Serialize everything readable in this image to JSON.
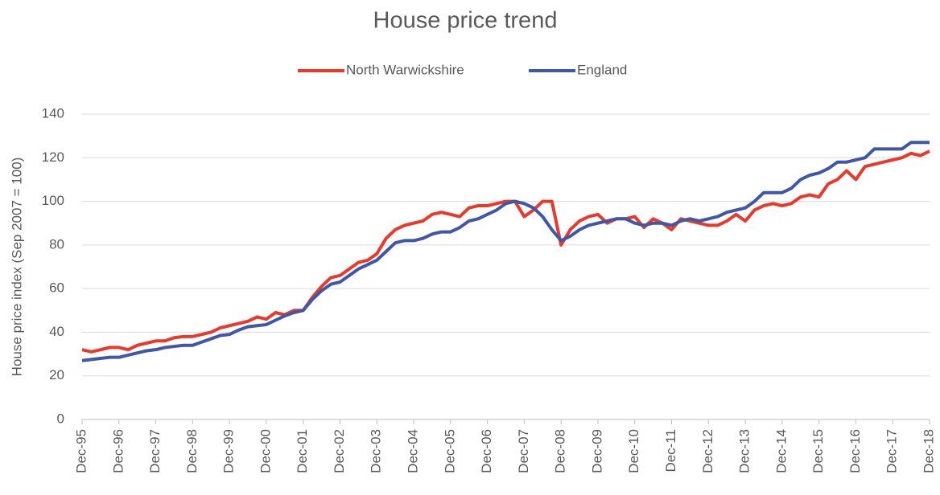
{
  "chart_data": {
    "type": "line",
    "title": "House price trend",
    "y_label": "House price index (Sep 2007 = 100)",
    "categories": [
      "Dec-95",
      null,
      null,
      null,
      "Dec-96",
      null,
      null,
      null,
      "Dec-97",
      null,
      null,
      null,
      "Dec-98",
      null,
      null,
      null,
      "Dec-99",
      null,
      null,
      null,
      "Dec-00",
      null,
      null,
      null,
      "Dec-01",
      null,
      null,
      null,
      "Dec-02",
      null,
      null,
      null,
      "Dec-03",
      null,
      null,
      null,
      "Dec-04",
      null,
      null,
      null,
      "Dec-05",
      null,
      null,
      null,
      "Dec-06",
      null,
      null,
      null,
      "Dec-07",
      null,
      null,
      null,
      "Dec-08",
      null,
      null,
      null,
      "Dec-09",
      null,
      null,
      null,
      "Dec-10",
      null,
      null,
      null,
      "Dec-11",
      null,
      null,
      null,
      "Dec-12",
      null,
      null,
      null,
      "Dec-13",
      null,
      null,
      null,
      "Dec-14",
      null,
      null,
      null,
      "Dec-15",
      null,
      null,
      null,
      "Dec-16",
      null,
      null,
      null,
      "Dec-17",
      null,
      null,
      null,
      "Dec-18"
    ],
    "series": [
      {
        "name": "North Warwickshire",
        "color": "#e8392b",
        "values": [
          32,
          31,
          32,
          33,
          33,
          32,
          34,
          35,
          36,
          36,
          37.5,
          38,
          38,
          39,
          40,
          42,
          43,
          44,
          45,
          47,
          46,
          49,
          48,
          50,
          50,
          56,
          61,
          65,
          66,
          69,
          72,
          73,
          76,
          83,
          87,
          89,
          90,
          91,
          94,
          95,
          94,
          93,
          97,
          98,
          98,
          99,
          100,
          100,
          93,
          96,
          100,
          100,
          80,
          87,
          91,
          93,
          94,
          90,
          92,
          92,
          93,
          88,
          92,
          90,
          87,
          92,
          91,
          90,
          89,
          89,
          91,
          94,
          91,
          96,
          98,
          99,
          98,
          99,
          102,
          103,
          102,
          108,
          110,
          114,
          110,
          116,
          117,
          118,
          119,
          120,
          122,
          121,
          123
        ]
      },
      {
        "name": "England",
        "color": "#3f57a6",
        "values": [
          27,
          27.5,
          28,
          28.5,
          28.5,
          29.5,
          30.5,
          31.5,
          32,
          33,
          33.5,
          34,
          34,
          35.5,
          37,
          38.5,
          39,
          41,
          42.5,
          43,
          43.5,
          45.5,
          47.5,
          49,
          50,
          55,
          59,
          62,
          63,
          66,
          69,
          71,
          73,
          77,
          81,
          82,
          82,
          83,
          85,
          86,
          86,
          88,
          91,
          92,
          94,
          96,
          99,
          100,
          99,
          97,
          93,
          87,
          82,
          84,
          87,
          89,
          90,
          91,
          92,
          92,
          90,
          89,
          90,
          90,
          89,
          91,
          92,
          91,
          92,
          93,
          95,
          96,
          97,
          100,
          104,
          104,
          104,
          106,
          110,
          112,
          113,
          115,
          118,
          118,
          119,
          120,
          124,
          124,
          124,
          124,
          127,
          127,
          127
        ]
      }
    ],
    "ylim": [
      0,
      140
    ],
    "yticks": [
      0,
      20,
      40,
      60,
      80,
      100,
      120,
      140
    ],
    "grid": true,
    "legend": "top"
  }
}
